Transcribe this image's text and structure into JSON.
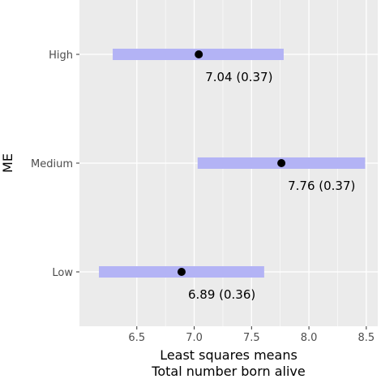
{
  "chart_data": {
    "type": "point-range",
    "categories": [
      "High",
      "Medium",
      "Low"
    ],
    "series": [
      {
        "points": [
          {
            "category": "High",
            "estimate": 7.04,
            "lower": 6.29,
            "upper": 7.78,
            "label": "7.04 (0.37)"
          },
          {
            "category": "Medium",
            "estimate": 7.76,
            "lower": 7.03,
            "upper": 8.49,
            "label": "7.76 (0.37)"
          },
          {
            "category": "Low",
            "estimate": 6.89,
            "lower": 6.17,
            "upper": 7.61,
            "label": "6.89 (0.36)"
          }
        ]
      }
    ],
    "x_ticks": [
      "6.5",
      "7.0",
      "7.5",
      "8.0",
      "8.5"
    ],
    "xlim": [
      6.0,
      8.6
    ],
    "xlabel_line1": "Least squares means",
    "xlabel_line2": "Total number born alive",
    "ylabel": "ME",
    "grid": true,
    "colors": {
      "panel": "#ebebeb",
      "grid_major": "#ffffff",
      "interval": "#b3b3f5",
      "point": "#000000"
    }
  }
}
